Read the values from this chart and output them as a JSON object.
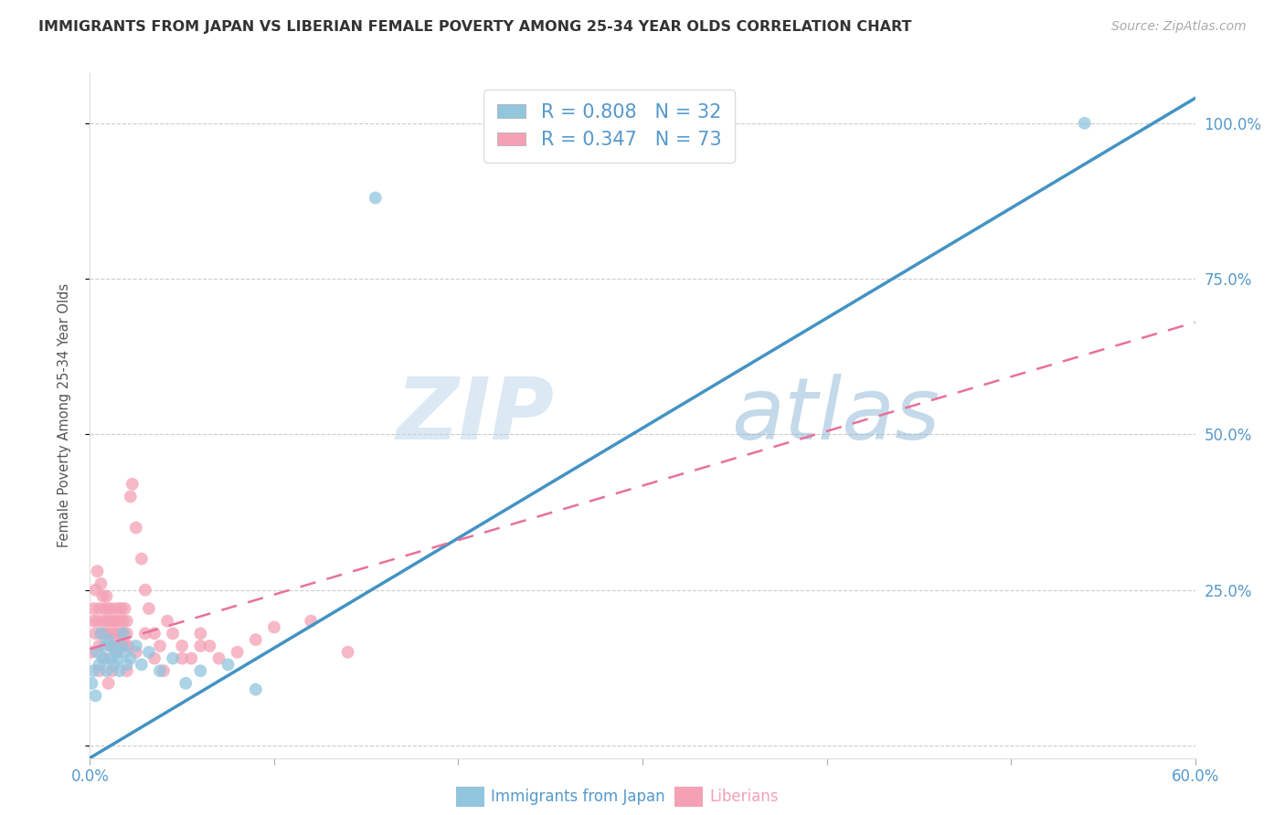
{
  "title": "IMMIGRANTS FROM JAPAN VS LIBERIAN FEMALE POVERTY AMONG 25-34 YEAR OLDS CORRELATION CHART",
  "source": "Source: ZipAtlas.com",
  "ylabel": "Female Poverty Among 25-34 Year Olds",
  "xlim": [
    0.0,
    0.6
  ],
  "ylim": [
    -0.02,
    1.08
  ],
  "x_ticks": [
    0.0,
    0.1,
    0.2,
    0.3,
    0.4,
    0.5,
    0.6
  ],
  "x_tick_labels": [
    "0.0%",
    "",
    "",
    "",
    "",
    "",
    "60.0%"
  ],
  "y_ticks": [
    0.0,
    0.25,
    0.5,
    0.75,
    1.0
  ],
  "y_tick_labels_right": [
    "",
    "25.0%",
    "50.0%",
    "75.0%",
    "100.0%"
  ],
  "japan_color": "#92c5de",
  "liberia_color": "#f4a0b5",
  "japan_R": 0.808,
  "japan_N": 32,
  "liberia_R": 0.347,
  "liberia_N": 73,
  "japan_line_color": "#4393c3",
  "liberia_line_color": "#e8719a",
  "grid_color": "#cccccc",
  "watermark_zip": "ZIP",
  "watermark_atlas": "atlas",
  "background_color": "#ffffff",
  "title_color": "#333333",
  "axis_tick_color": "#5599cc",
  "japan_scatter_x": [
    0.001,
    0.002,
    0.003,
    0.004,
    0.005,
    0.006,
    0.007,
    0.008,
    0.009,
    0.01,
    0.011,
    0.012,
    0.013,
    0.014,
    0.015,
    0.016,
    0.017,
    0.018,
    0.019,
    0.02,
    0.022,
    0.025,
    0.028,
    0.032,
    0.038,
    0.045,
    0.052,
    0.06,
    0.075,
    0.09,
    0.155,
    0.54
  ],
  "japan_scatter_y": [
    0.1,
    0.12,
    0.08,
    0.15,
    0.13,
    0.18,
    0.14,
    0.16,
    0.12,
    0.17,
    0.14,
    0.16,
    0.13,
    0.15,
    0.14,
    0.12,
    0.16,
    0.18,
    0.15,
    0.13,
    0.14,
    0.16,
    0.13,
    0.15,
    0.12,
    0.14,
    0.1,
    0.12,
    0.13,
    0.09,
    0.88,
    1.0
  ],
  "liberia_scatter_x": [
    0.001,
    0.002,
    0.002,
    0.003,
    0.003,
    0.004,
    0.004,
    0.005,
    0.005,
    0.006,
    0.006,
    0.007,
    0.007,
    0.008,
    0.008,
    0.009,
    0.009,
    0.01,
    0.01,
    0.011,
    0.011,
    0.012,
    0.012,
    0.013,
    0.013,
    0.014,
    0.014,
    0.015,
    0.015,
    0.016,
    0.016,
    0.017,
    0.017,
    0.018,
    0.018,
    0.019,
    0.019,
    0.02,
    0.02,
    0.021,
    0.022,
    0.023,
    0.025,
    0.028,
    0.03,
    0.032,
    0.035,
    0.038,
    0.042,
    0.045,
    0.05,
    0.055,
    0.06,
    0.065,
    0.07,
    0.08,
    0.09,
    0.1,
    0.12,
    0.14,
    0.005,
    0.008,
    0.01,
    0.012,
    0.015,
    0.018,
    0.02,
    0.025,
    0.03,
    0.035,
    0.04,
    0.05,
    0.06
  ],
  "liberia_scatter_y": [
    0.15,
    0.2,
    0.22,
    0.18,
    0.25,
    0.2,
    0.28,
    0.16,
    0.22,
    0.18,
    0.26,
    0.2,
    0.24,
    0.18,
    0.22,
    0.2,
    0.24,
    0.18,
    0.22,
    0.2,
    0.16,
    0.18,
    0.22,
    0.2,
    0.16,
    0.18,
    0.2,
    0.22,
    0.16,
    0.18,
    0.2,
    0.16,
    0.22,
    0.18,
    0.2,
    0.16,
    0.22,
    0.18,
    0.2,
    0.16,
    0.4,
    0.42,
    0.35,
    0.3,
    0.25,
    0.22,
    0.18,
    0.16,
    0.2,
    0.18,
    0.16,
    0.14,
    0.18,
    0.16,
    0.14,
    0.15,
    0.17,
    0.19,
    0.2,
    0.15,
    0.12,
    0.14,
    0.1,
    0.12,
    0.15,
    0.17,
    0.12,
    0.15,
    0.18,
    0.14,
    0.12,
    0.14,
    0.16
  ],
  "japan_line_x": [
    0.0,
    0.6
  ],
  "japan_line_y": [
    -0.02,
    1.04
  ],
  "liberia_line_x": [
    0.0,
    0.6
  ],
  "liberia_line_y": [
    0.155,
    0.68
  ]
}
